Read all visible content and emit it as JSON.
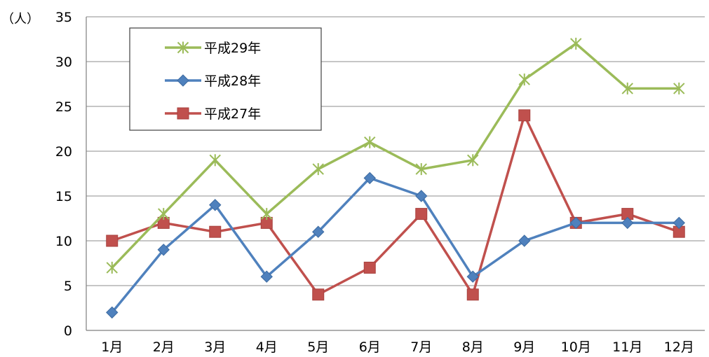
{
  "chart_data": {
    "type": "line",
    "unit_label": "（人）",
    "categories": [
      "1月",
      "2月",
      "3月",
      "4月",
      "5月",
      "6月",
      "7月",
      "8月",
      "9月",
      "10月",
      "11月",
      "12月"
    ],
    "ylim": [
      0,
      35
    ],
    "yticks": [
      0,
      5,
      10,
      15,
      20,
      25,
      30,
      35
    ],
    "grid": "horizontal",
    "legend_position": "top-left",
    "series": [
      {
        "name": "平成29年",
        "color": "#9bbb59",
        "marker": "star",
        "values": [
          7,
          13,
          19,
          13,
          18,
          21,
          18,
          19,
          28,
          32,
          27,
          27
        ]
      },
      {
        "name": "平成28年",
        "color": "#4f81bd",
        "marker": "diamond",
        "values": [
          2,
          9,
          14,
          6,
          11,
          17,
          15,
          6,
          10,
          12,
          12,
          12
        ]
      },
      {
        "name": "平成27年",
        "color": "#c0504d",
        "marker": "square",
        "values": [
          10,
          12,
          11,
          12,
          4,
          7,
          13,
          4,
          24,
          12,
          13,
          11
        ]
      }
    ]
  }
}
